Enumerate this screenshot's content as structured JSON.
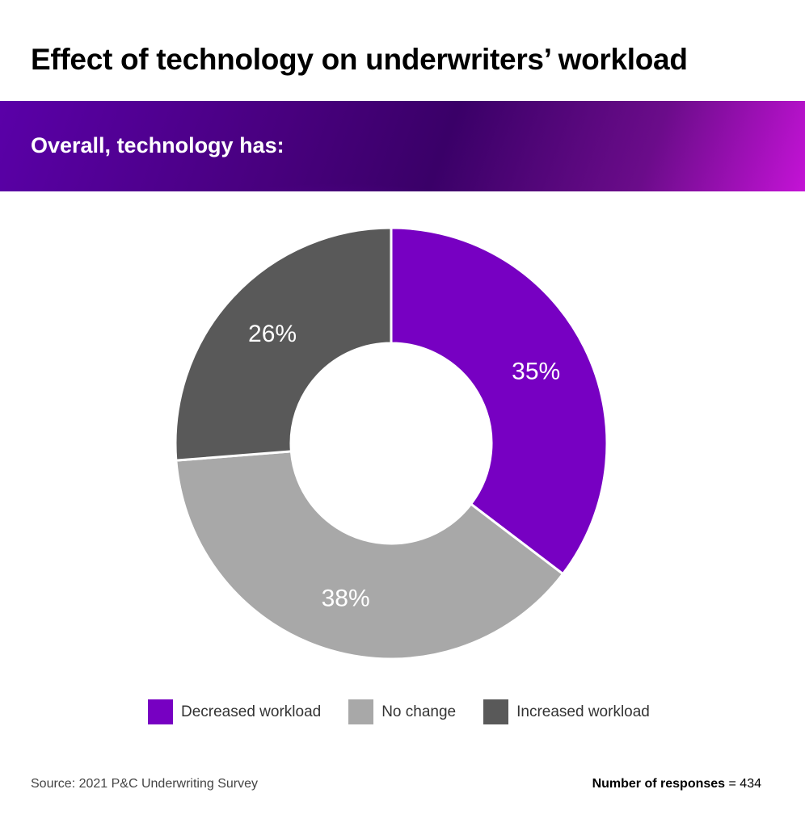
{
  "title": "Effect of technology on underwriters’ workload",
  "subtitle": "Overall, technology has:",
  "colors": {
    "banner_start": "#5a00a8",
    "banner_end": "#c413d6",
    "separator": "#ffffff"
  },
  "chart_data": {
    "type": "pie",
    "style": "donut",
    "start_angle_deg": 0,
    "direction": "clockwise",
    "legend_position": "bottom",
    "slices": [
      {
        "label": "Decreased workload",
        "value": 35,
        "display": "35%",
        "color": "#7700c2"
      },
      {
        "label": "No change",
        "value": 38,
        "display": "38%",
        "color": "#a8a8a8"
      },
      {
        "label": "Increased workload",
        "value": 26,
        "display": "26%",
        "color": "#595959"
      }
    ]
  },
  "legend": [
    {
      "label": "Decreased workload",
      "color": "#7700c2"
    },
    {
      "label": "No change",
      "color": "#a8a8a8"
    },
    {
      "label": "Increased workload",
      "color": "#595959"
    }
  ],
  "footer": {
    "source": "Source: 2021 P&C Underwriting Survey",
    "responses_label": "Number of responses",
    "responses_value": " = 434"
  }
}
